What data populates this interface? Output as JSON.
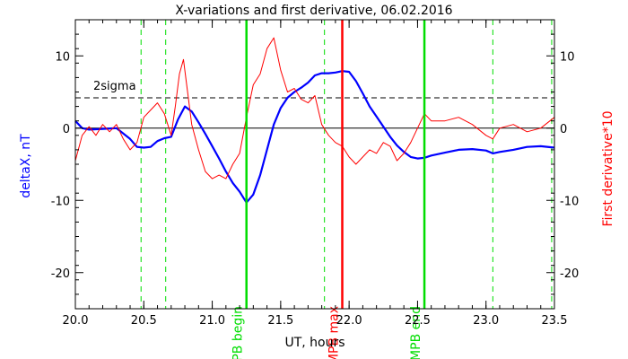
{
  "chart_data": {
    "type": "line",
    "title": "X-variations and first derivative, 06.02.2016",
    "xlabel": "UT, hours",
    "ylabel_left": "deltaX, nT",
    "ylabel_right": "First derivative*10",
    "xlim": [
      20.0,
      23.5
    ],
    "ylim": [
      -25,
      15
    ],
    "x_ticks": [
      "20.0",
      "20.5",
      "21.0",
      "21.5",
      "22.0",
      "22.5",
      "23.0",
      "23.5"
    ],
    "y_ticks": [
      "10",
      "0",
      "-10",
      "-20"
    ],
    "colors": {
      "deltaX": "#0000ff",
      "derivative": "#ff0000",
      "event_lines": "#00dd00",
      "max_line": "#ff0000",
      "left_axis_label": "#0000ff",
      "right_axis_label": "#ff0000"
    },
    "sigma_level": 4.2,
    "sigma_label": "2sigma",
    "zero_line": 0,
    "dashed_green_x": [
      20.48,
      20.66,
      21.82,
      23.05,
      23.48
    ],
    "vertical_markers": [
      {
        "x": 21.25,
        "label": "MPB begin",
        "color": "#00dd00"
      },
      {
        "x": 21.95,
        "label": "MPB max",
        "color": "#ff0000"
      },
      {
        "x": 22.55,
        "label": "MPB end",
        "color": "#00dd00"
      }
    ],
    "series": [
      {
        "name": "deltaX",
        "axis": "left",
        "x": [
          20.0,
          20.05,
          20.1,
          20.2,
          20.3,
          20.4,
          20.45,
          20.5,
          20.55,
          20.6,
          20.65,
          20.7,
          20.75,
          20.8,
          20.85,
          20.9,
          20.95,
          21.0,
          21.05,
          21.1,
          21.15,
          21.2,
          21.25,
          21.3,
          21.35,
          21.4,
          21.45,
          21.5,
          21.55,
          21.6,
          21.65,
          21.7,
          21.75,
          21.8,
          21.85,
          21.9,
          21.95,
          22.0,
          22.05,
          22.1,
          22.15,
          22.2,
          22.25,
          22.3,
          22.35,
          22.4,
          22.45,
          22.5,
          22.55,
          22.6,
          22.7,
          22.8,
          22.9,
          23.0,
          23.05,
          23.1,
          23.2,
          23.3,
          23.4,
          23.5
        ],
        "values": [
          1.0,
          0.0,
          -0.2,
          -0.1,
          0.0,
          -1.5,
          -2.6,
          -2.7,
          -2.6,
          -1.8,
          -1.4,
          -1.2,
          1.2,
          3.0,
          2.3,
          0.8,
          -0.8,
          -2.5,
          -4.2,
          -6.0,
          -7.6,
          -8.8,
          -10.3,
          -9.2,
          -6.5,
          -3.0,
          0.5,
          2.8,
          4.2,
          5.0,
          5.6,
          6.3,
          7.3,
          7.6,
          7.6,
          7.7,
          7.9,
          7.8,
          6.5,
          4.8,
          3.0,
          1.6,
          0.2,
          -1.2,
          -2.4,
          -3.3,
          -4.0,
          -4.2,
          -4.1,
          -3.8,
          -3.4,
          -3.0,
          -2.9,
          -3.1,
          -3.5,
          -3.3,
          -3.0,
          -2.6,
          -2.5,
          -2.7
        ]
      },
      {
        "name": "First derivative*10",
        "axis": "right",
        "x": [
          20.0,
          20.05,
          20.1,
          20.15,
          20.2,
          20.25,
          20.3,
          20.35,
          20.4,
          20.45,
          20.5,
          20.55,
          20.6,
          20.65,
          20.7,
          20.73,
          20.76,
          20.79,
          20.82,
          20.85,
          20.9,
          20.95,
          21.0,
          21.05,
          21.1,
          21.15,
          21.2,
          21.25,
          21.3,
          21.35,
          21.4,
          21.45,
          21.5,
          21.55,
          21.6,
          21.65,
          21.7,
          21.75,
          21.8,
          21.85,
          21.9,
          21.95,
          22.0,
          22.05,
          22.1,
          22.15,
          22.2,
          22.25,
          22.3,
          22.35,
          22.4,
          22.45,
          22.5,
          22.55,
          22.6,
          22.7,
          22.8,
          22.9,
          23.0,
          23.05,
          23.1,
          23.2,
          23.3,
          23.4,
          23.5
        ],
        "values": [
          -4.5,
          -1.0,
          0.2,
          -1.0,
          0.5,
          -0.5,
          0.5,
          -1.5,
          -3.0,
          -2.0,
          1.5,
          2.5,
          3.5,
          2.0,
          -1.0,
          3.0,
          7.5,
          9.5,
          5.0,
          0.5,
          -3.0,
          -6.0,
          -7.0,
          -6.5,
          -7.0,
          -5.0,
          -3.5,
          1.5,
          6.0,
          7.5,
          11.0,
          12.5,
          8.0,
          5.0,
          5.5,
          4.0,
          3.5,
          4.5,
          0.5,
          -1.0,
          -2.0,
          -2.5,
          -4.0,
          -5.0,
          -4.0,
          -3.0,
          -3.5,
          -2.0,
          -2.5,
          -4.5,
          -3.5,
          -2.0,
          0.0,
          2.0,
          1.0,
          1.0,
          1.5,
          0.5,
          -1.0,
          -1.5,
          0.0,
          0.5,
          -0.5,
          0.0,
          1.5
        ]
      }
    ]
  }
}
